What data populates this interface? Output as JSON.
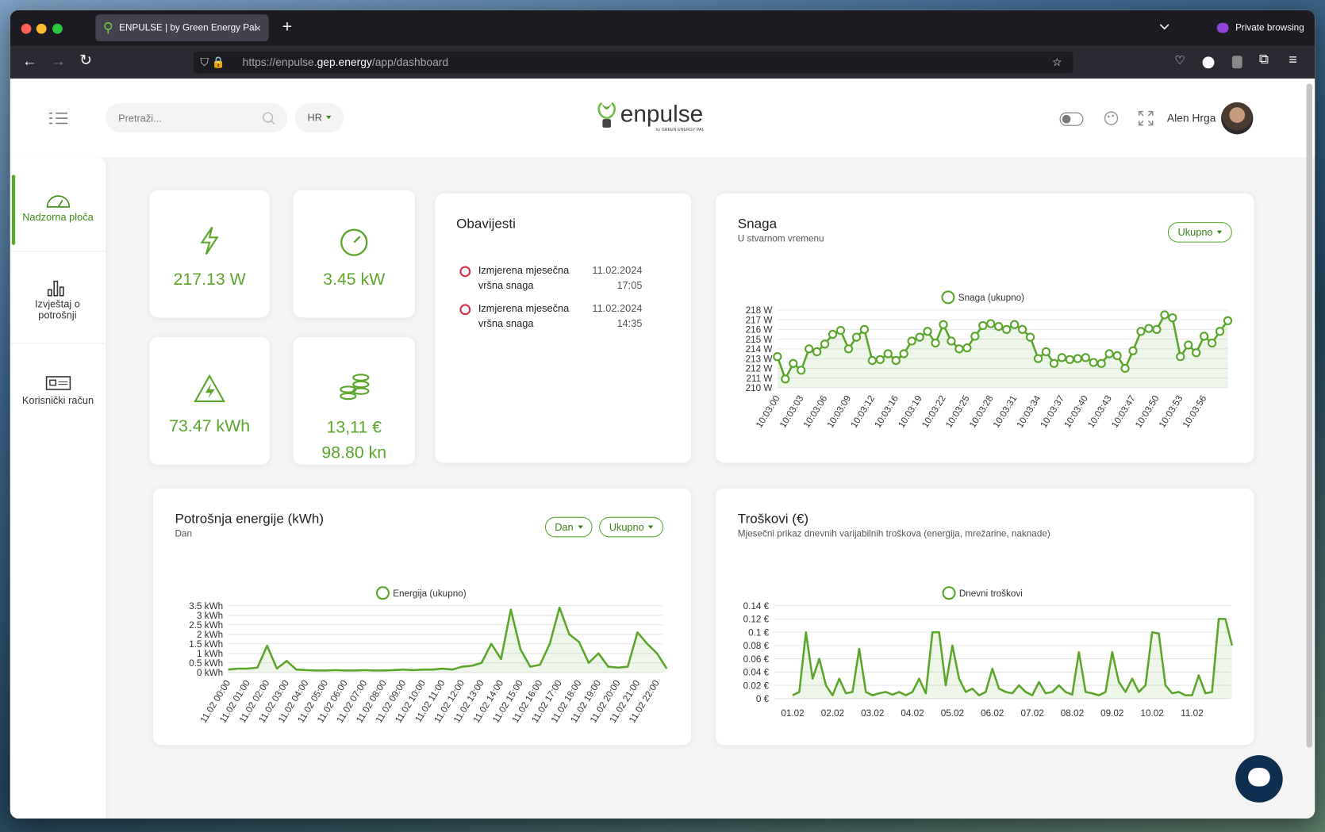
{
  "browser": {
    "tab_title": "ENPULSE | by Green Energy Pal",
    "private": "Private browsing",
    "url": {
      "scheme": "https://enpulse.",
      "host": "gep.energy",
      "path": "/app/dashboard"
    }
  },
  "header": {
    "search_placeholder": "Pretraži...",
    "language": "HR",
    "logo": "enpulse",
    "logo_sub": "by GREEN ENERGY PAL",
    "user": "Alen Hrga"
  },
  "sidebar": [
    "Nadzorna ploča",
    "Izvještaj o potrošnji",
    "Korisnički račun"
  ],
  "stats": [
    "217.13 W",
    "3.45 kW",
    "73.47 kWh",
    "13,11 €",
    "98.80 kn"
  ],
  "notifications": {
    "title": "Obavijesti",
    "items": [
      {
        "text": "Izmjerena mjesečna vršna snaga",
        "date": "11.02.2024",
        "time": "17:05"
      },
      {
        "text": "Izmjerena mjesečna vršna snaga",
        "date": "11.02.2024",
        "time": "14:35"
      }
    ]
  },
  "chart_data": [
    {
      "type": "line",
      "title": "Snaga",
      "subtitle": "U stvarnom vremenu",
      "controls": [
        "Ukupno"
      ],
      "markers": true,
      "grid": true,
      "categories": [
        "10:03:00",
        null,
        null,
        "10:03:03",
        null,
        null,
        "10:03:06",
        null,
        null,
        "10:03:09",
        null,
        null,
        "10:03:12",
        null,
        null,
        "10:03:16",
        null,
        null,
        "10:03:19",
        null,
        null,
        "10:03:22",
        null,
        null,
        "10:03:25",
        null,
        null,
        "10:03:28",
        null,
        null,
        "10:03:31",
        null,
        null,
        "10:03:34",
        null,
        null,
        "10:03:37",
        null,
        null,
        "10:03:40",
        null,
        null,
        "10:03:43",
        null,
        null,
        "10:03:47",
        null,
        null,
        "10:03:50",
        null,
        null,
        "10:03:53",
        null,
        null,
        "10:03:56",
        null,
        null,
        null
      ],
      "series": [
        {
          "name": "Snaga (ukupno)",
          "color": "#5ba52b",
          "values": [
            213.2,
            210.9,
            212.5,
            211.8,
            214,
            213.7,
            214.5,
            215.5,
            215.9,
            214,
            215.2,
            216,
            212.8,
            212.9,
            213.5,
            212.8,
            213.5,
            214.8,
            215.2,
            215.8,
            214.6,
            216.5,
            214.8,
            214,
            214.1,
            215.3,
            216.4,
            216.6,
            216.3,
            216,
            216.5,
            216,
            215.2,
            213,
            213.7,
            212.5,
            213.1,
            212.9,
            213,
            213.1,
            212.6,
            212.5,
            213.5,
            213.3,
            212,
            213.8,
            215.8,
            216.1,
            216,
            217.5,
            217.2,
            213.2,
            214.4,
            213.6,
            215.3,
            214.6,
            215.8,
            216.9
          ]
        }
      ],
      "ylim": [
        210,
        218
      ],
      "yticks": [
        {
          "value": 210,
          "label": "210 W"
        },
        {
          "value": 211,
          "label": "211 W"
        },
        {
          "value": 212,
          "label": "212 W"
        },
        {
          "value": 213,
          "label": "213 W"
        },
        {
          "value": 214,
          "label": "214 W"
        },
        {
          "value": 215,
          "label": "215 W"
        },
        {
          "value": 216,
          "label": "216 W"
        },
        {
          "value": 217,
          "label": "217 W"
        },
        {
          "value": 218,
          "label": "218 W"
        }
      ]
    },
    {
      "type": "line",
      "title": "Potrošnja energije (kWh)",
      "subtitle": "Dan",
      "controls": [
        "Dan",
        "Ukupno"
      ],
      "markers": false,
      "grid": true,
      "categories": [
        "11.02 00:00",
        null,
        "11.02 01:00",
        null,
        "11.02 02:00",
        null,
        "11.02 03:00",
        null,
        "11.02 04:00",
        null,
        "11.02 05:00",
        null,
        "11.02 06:00",
        null,
        "11.02 07:00",
        null,
        "11.02 08:00",
        null,
        "11.02 09:00",
        null,
        "11.02 10:00",
        null,
        "11.02 11:00",
        null,
        "11.02 12:00",
        null,
        "11.02 13:00",
        null,
        "11.02 14:00",
        null,
        "11.02 15:00",
        null,
        "11.02 16:00",
        null,
        "11.02 17:00",
        null,
        "11.02 18:00",
        null,
        "11.02 19:00",
        null,
        "11.02 20:00",
        null,
        "11.02 21:00",
        null,
        "11.02 22:00",
        null
      ],
      "series": [
        {
          "name": "Energija (ukupno)",
          "color": "#5ba52b",
          "values": [
            0.15,
            0.2,
            0.2,
            0.25,
            1.4,
            0.2,
            0.6,
            0.15,
            0.12,
            0.1,
            0.1,
            0.12,
            0.1,
            0.1,
            0.12,
            0.1,
            0.1,
            0.12,
            0.15,
            0.12,
            0.15,
            0.15,
            0.2,
            0.15,
            0.3,
            0.35,
            0.5,
            1.5,
            0.7,
            3.3,
            1.2,
            0.3,
            0.4,
            1.5,
            3.4,
            2.0,
            1.6,
            0.5,
            1.0,
            0.3,
            0.25,
            0.3,
            2.1,
            1.5,
            1.0,
            0.2
          ]
        }
      ],
      "ylim": [
        0,
        3.5
      ],
      "yticks": [
        {
          "value": 0,
          "label": "0 kWh"
        },
        {
          "value": 0.5,
          "label": "0.5 kWh"
        },
        {
          "value": 1,
          "label": "1 kWh"
        },
        {
          "value": 1.5,
          "label": "1.5 kWh"
        },
        {
          "value": 2,
          "label": "2 kWh"
        },
        {
          "value": 2.5,
          "label": "2.5 kWh"
        },
        {
          "value": 3,
          "label": "3 kWh"
        },
        {
          "value": 3.5,
          "label": "3.5 kWh"
        }
      ]
    },
    {
      "type": "line",
      "title": "Troškovi (€)",
      "subtitle": "Mjesečni prikaz dnevnih varijabilnih troškova (energija, mrežarine, naknade)",
      "markers": false,
      "grid": true,
      "categories": [
        "01.02",
        null,
        null,
        null,
        null,
        null,
        "02.02",
        null,
        null,
        null,
        null,
        null,
        "03.02",
        null,
        null,
        null,
        null,
        null,
        "04.02",
        null,
        null,
        null,
        null,
        null,
        "05.02",
        null,
        null,
        null,
        null,
        null,
        "06.02",
        null,
        null,
        null,
        null,
        null,
        "07.02",
        null,
        null,
        null,
        null,
        null,
        "08.02",
        null,
        null,
        null,
        null,
        null,
        "09.02",
        null,
        null,
        null,
        null,
        null,
        "10.02",
        null,
        null,
        null,
        null,
        null,
        "11.02",
        null,
        null,
        null,
        null,
        null,
        null
      ],
      "series": [
        {
          "name": "Dnevni troškovi",
          "color": "#5ba52b",
          "values": [
            0.005,
            0.01,
            0.1,
            0.03,
            0.06,
            0.02,
            0.005,
            0.03,
            0.008,
            0.01,
            0.075,
            0.01,
            0.005,
            0.008,
            0.01,
            0.006,
            0.01,
            0.005,
            0.01,
            0.03,
            0.008,
            0.1,
            0.1,
            0.02,
            0.08,
            0.03,
            0.01,
            0.015,
            0.005,
            0.01,
            0.045,
            0.015,
            0.01,
            0.008,
            0.02,
            0.01,
            0.005,
            0.025,
            0.008,
            0.01,
            0.02,
            0.01,
            0.006,
            0.07,
            0.01,
            0.008,
            0.005,
            0.01,
            0.07,
            0.025,
            0.01,
            0.03,
            0.01,
            0.02,
            0.1,
            0.098,
            0.02,
            0.008,
            0.01,
            0.005,
            0.005,
            0.035,
            0.008,
            0.01,
            0.12,
            0.12,
            0.08
          ]
        }
      ],
      "ylim": [
        0,
        0.14
      ],
      "yticks": [
        {
          "value": 0,
          "label": "0 €"
        },
        {
          "value": 0.02,
          "label": "0.02 €"
        },
        {
          "value": 0.04,
          "label": "0.04 €"
        },
        {
          "value": 0.06,
          "label": "0.06 €"
        },
        {
          "value": 0.08,
          "label": "0.08 €"
        },
        {
          "value": 0.1,
          "label": "0.1 €"
        },
        {
          "value": 0.12,
          "label": "0.12 €"
        },
        {
          "value": 0.14,
          "label": "0.14 €"
        }
      ]
    }
  ]
}
